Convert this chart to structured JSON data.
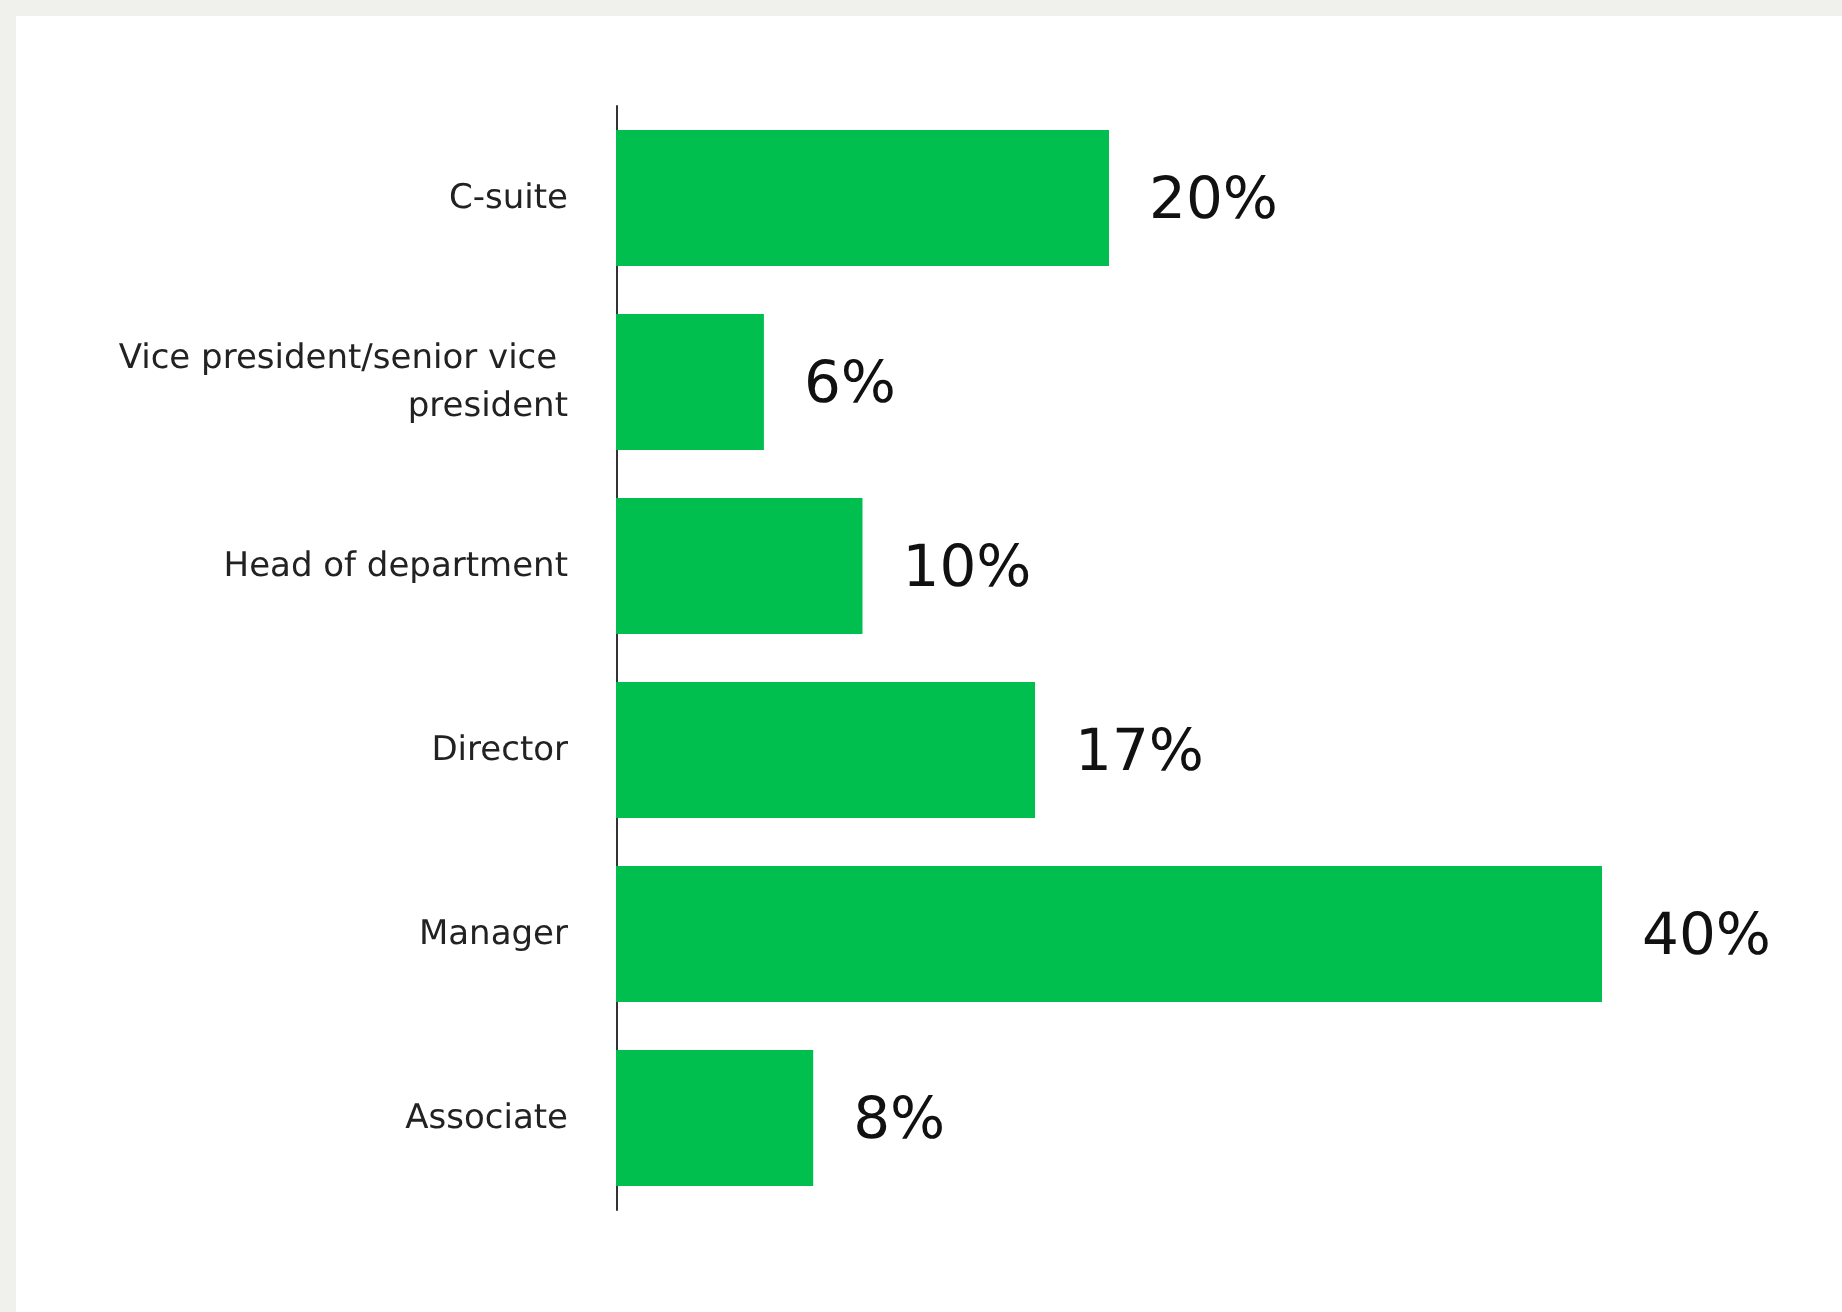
{
  "chart_data": {
    "type": "bar",
    "orientation": "horizontal",
    "categories": [
      "C-suite",
      "Vice president/senior vice president",
      "Head of department",
      "Director",
      "Manager",
      "Associate"
    ],
    "values": [
      20,
      6,
      10,
      17,
      40,
      8
    ],
    "value_labels": [
      "20%",
      "6%",
      "10%",
      "17%",
      "40%",
      "8%"
    ],
    "color": "#00bf4f"
  }
}
